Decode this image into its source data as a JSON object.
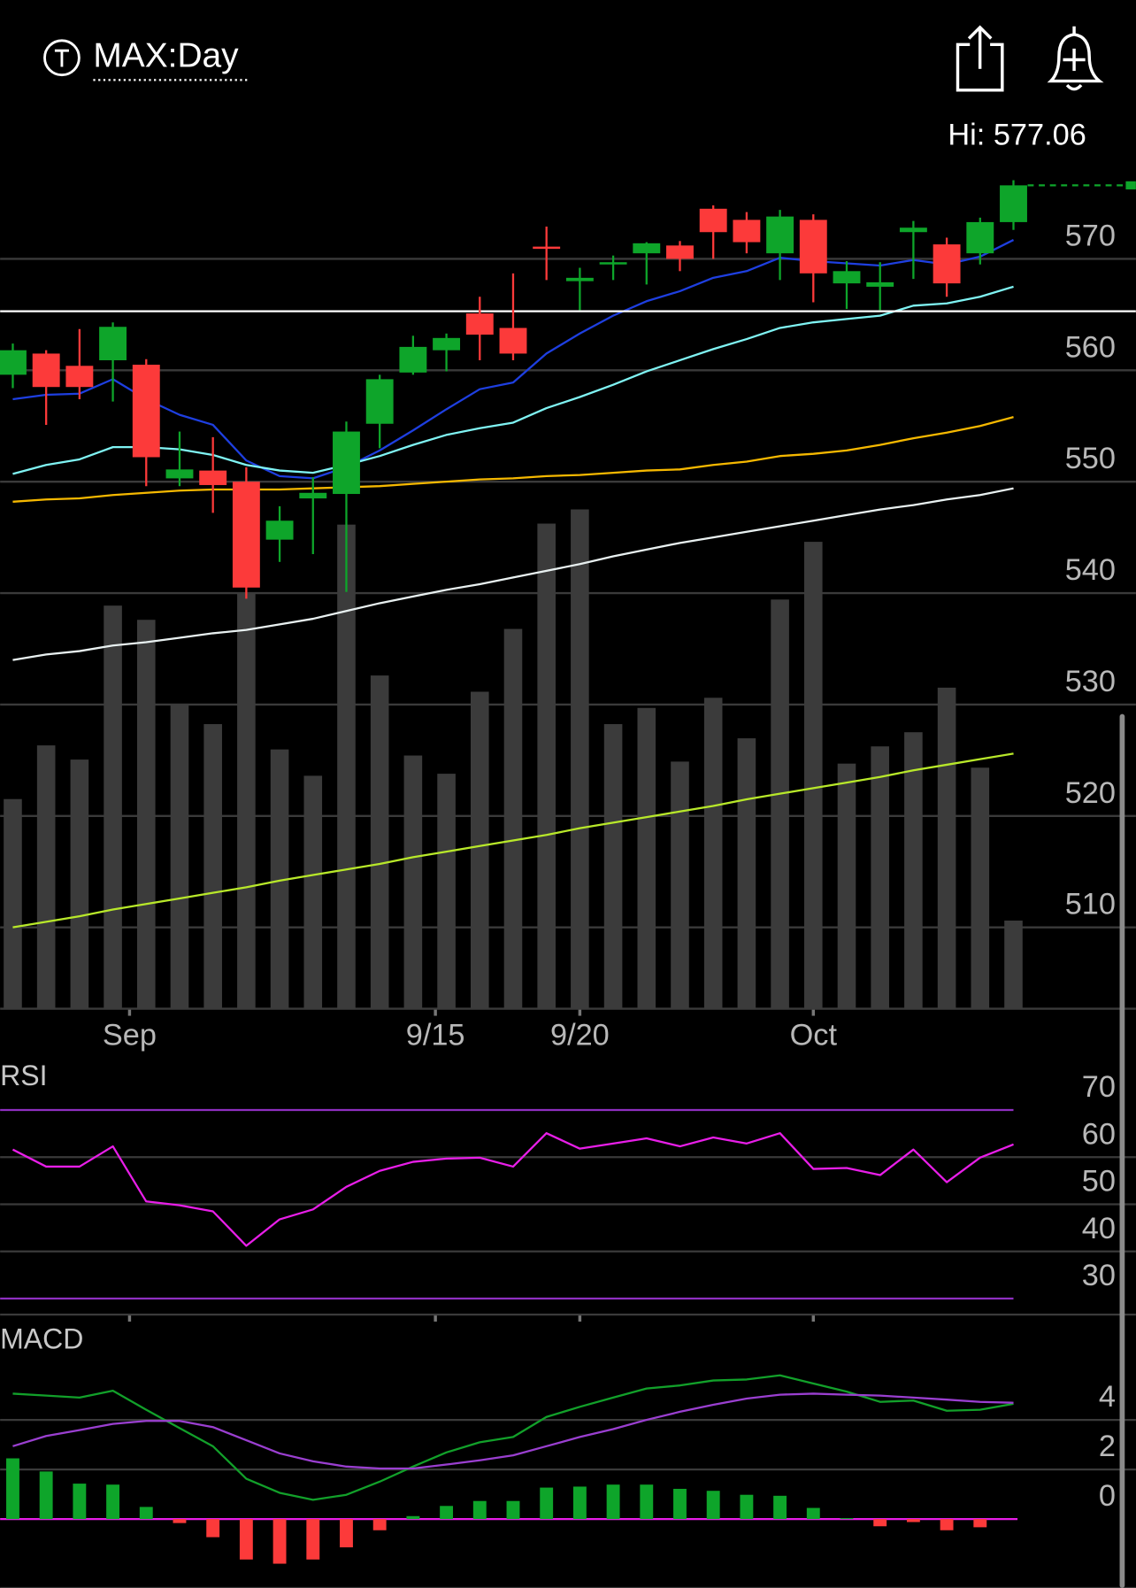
{
  "header": {
    "symbol": "MAX:Day",
    "hi": "Hi: 577.06"
  },
  "chart_data": [
    {
      "type": "candlestick",
      "x": [
        0,
        1,
        2,
        3,
        4,
        5,
        6,
        7,
        8,
        9,
        10,
        11,
        12,
        13,
        14,
        15,
        16,
        17,
        18,
        19,
        20,
        21,
        22,
        23,
        24,
        25,
        26,
        27,
        28,
        29,
        30
      ],
      "xlim": [
        -0.38,
        33.67
      ],
      "xticks": [
        {
          "value": 3.5,
          "label": "Sep"
        },
        {
          "value": 12.67,
          "label": "9/15"
        },
        {
          "value": 17.0,
          "label": "9/20"
        },
        {
          "value": 24.0,
          "label": "Oct"
        }
      ],
      "open": [
        559.6,
        561.5,
        560.4,
        560.9,
        560.5,
        550.3,
        551.0,
        550.0,
        544.8,
        548.5,
        548.9,
        555.2,
        559.8,
        561.8,
        565.1,
        563.8,
        571.1,
        568.0,
        569.5,
        570.5,
        571.2,
        574.5,
        573.5,
        570.5,
        573.5,
        567.8,
        567.5,
        572.4,
        571.3,
        570.5,
        573.3
      ],
      "high": [
        562.4,
        561.8,
        563.7,
        564.3,
        561.0,
        554.5,
        554.0,
        551.3,
        547.8,
        550.4,
        555.4,
        559.6,
        563.1,
        563.3,
        566.6,
        568.7,
        572.9,
        569.2,
        570.3,
        571.5,
        571.6,
        574.8,
        574.2,
        574.4,
        574.0,
        569.8,
        569.7,
        573.4,
        571.9,
        573.7,
        577.06
      ],
      "low": [
        558.4,
        555.1,
        557.4,
        557.2,
        549.6,
        549.6,
        547.2,
        539.5,
        542.8,
        543.5,
        540.1,
        553.0,
        559.6,
        559.9,
        560.9,
        560.9,
        568.1,
        565.4,
        568.1,
        567.7,
        568.9,
        570.0,
        570.5,
        568.1,
        566.1,
        565.5,
        565.4,
        568.2,
        566.6,
        569.5,
        572.6
      ],
      "close": [
        561.8,
        558.5,
        558.5,
        563.9,
        552.2,
        551.1,
        549.7,
        540.5,
        546.5,
        549.0,
        554.5,
        559.2,
        562.1,
        562.9,
        563.2,
        561.5,
        570.9,
        568.3,
        569.7,
        571.4,
        570.0,
        572.4,
        571.5,
        573.8,
        568.7,
        568.9,
        567.9,
        572.8,
        567.8,
        573.3,
        576.6
      ],
      "up_color": "#0ea52a",
      "down_color": "#fc3a3a",
      "volume": [
        207,
        260,
        246,
        398,
        384,
        300,
        281,
        411,
        256,
        230,
        478,
        329,
        250,
        232,
        313,
        375,
        479,
        493,
        281,
        297,
        244,
        307,
        267,
        404,
        461,
        242,
        259,
        273,
        317,
        238,
        87
      ],
      "volume_lim": [
        0,
        846
      ],
      "volume_color": "#3b3b3b",
      "series": [
        {
          "color": "#1e3fe0",
          "values": [
            557.4,
            557.8,
            557.9,
            559.2,
            557.4,
            556.0,
            555.1,
            551.9,
            550.5,
            550.3,
            551.3,
            552.8,
            554.6,
            556.5,
            558.3,
            558.9,
            561.5,
            563.3,
            564.9,
            566.2,
            567.1,
            568.3,
            568.9,
            570.1,
            569.8,
            569.6,
            569.4,
            569.9,
            569.5,
            570.2,
            571.7
          ]
        },
        {
          "color": "#7ff3f3",
          "values": [
            550.7,
            551.5,
            552.0,
            553.1,
            553.1,
            552.9,
            552.4,
            551.5,
            551.0,
            550.8,
            551.5,
            552.3,
            553.3,
            554.2,
            554.8,
            555.3,
            556.6,
            557.6,
            558.7,
            559.9,
            560.9,
            561.9,
            562.8,
            563.8,
            564.3,
            564.6,
            564.9,
            565.8,
            566.0,
            566.6,
            567.5
          ]
        },
        {
          "color": "#f5b800",
          "values": [
            548.2,
            548.4,
            548.5,
            548.8,
            549.0,
            549.2,
            549.3,
            549.3,
            549.3,
            549.4,
            549.5,
            549.6,
            549.8,
            550.0,
            550.2,
            550.3,
            550.5,
            550.6,
            550.8,
            551.0,
            551.1,
            551.5,
            551.8,
            552.3,
            552.5,
            552.8,
            553.3,
            553.9,
            554.4,
            555.0,
            555.8
          ]
        },
        {
          "color": "#e8f0f0",
          "values": [
            534.0,
            534.5,
            534.8,
            535.3,
            535.6,
            536.0,
            536.4,
            536.7,
            537.2,
            537.7,
            538.4,
            539.1,
            539.7,
            540.3,
            540.8,
            541.4,
            542.0,
            542.6,
            543.3,
            543.9,
            544.5,
            545.0,
            545.5,
            546.0,
            546.5,
            547.0,
            547.5,
            547.9,
            548.4,
            548.8,
            549.4
          ]
        },
        {
          "color": "#b8e82a",
          "values": [
            510.0,
            510.5,
            511.0,
            511.6,
            512.1,
            512.6,
            513.1,
            513.6,
            514.2,
            514.7,
            515.2,
            515.7,
            516.3,
            516.8,
            517.3,
            517.8,
            518.3,
            518.9,
            519.4,
            519.9,
            520.4,
            520.9,
            521.5,
            522.0,
            522.5,
            523.0,
            523.5,
            524.1,
            524.6,
            525.1,
            525.6
          ]
        }
      ],
      "hline": 565.3,
      "hline_color": "#ffffff",
      "ylim": [
        502.7,
        579.6
      ],
      "yticks": [
        510,
        520,
        530,
        540,
        550,
        560,
        570
      ],
      "grid": true
    },
    {
      "type": "line",
      "title": "RSI",
      "series": [
        {
          "color": "#e81ee8",
          "values": [
            61.6,
            58.0,
            58.0,
            62.3,
            50.6,
            49.8,
            48.5,
            41.2,
            46.8,
            48.9,
            53.7,
            57.1,
            59.0,
            59.7,
            59.9,
            58.0,
            65.1,
            61.8,
            62.9,
            64.0,
            62.3,
            64.2,
            62.9,
            65.1,
            57.5,
            57.7,
            56.2,
            61.6,
            54.7,
            59.9,
            62.7
          ]
        }
      ],
      "bands": [
        70,
        30
      ],
      "band_color": "#8e2fc0",
      "ylim": [
        26.6,
        79.9
      ],
      "yticks": [
        30,
        40,
        50,
        60,
        70
      ],
      "grid": true
    },
    {
      "type": "macd",
      "title": "MACD",
      "series": [
        {
          "color": "#12a02a",
          "values": [
            5.06,
            4.98,
            4.9,
            5.18,
            4.41,
            3.67,
            2.94,
            1.63,
            1.06,
            0.78,
            0.98,
            1.51,
            2.12,
            2.69,
            3.1,
            3.31,
            4.12,
            4.53,
            4.9,
            5.27,
            5.39,
            5.59,
            5.63,
            5.8,
            5.47,
            5.14,
            4.73,
            4.78,
            4.37,
            4.41,
            4.65
          ]
        },
        {
          "color": "#9a3fd0",
          "values": [
            2.94,
            3.35,
            3.59,
            3.84,
            3.96,
            3.96,
            3.71,
            3.18,
            2.65,
            2.33,
            2.12,
            2.04,
            2.04,
            2.2,
            2.37,
            2.57,
            2.94,
            3.31,
            3.63,
            4.0,
            4.33,
            4.61,
            4.86,
            5.02,
            5.06,
            5.02,
            4.98,
            4.9,
            4.82,
            4.73,
            4.69
          ]
        }
      ],
      "histogram": [
        2.45,
        1.92,
        1.43,
        1.39,
        0.49,
        -0.16,
        -0.73,
        -1.63,
        -1.8,
        -1.63,
        -1.14,
        -0.45,
        0.12,
        0.53,
        0.73,
        0.73,
        1.27,
        1.31,
        1.39,
        1.39,
        1.22,
        1.14,
        0.98,
        0.94,
        0.45,
        0.04,
        -0.29,
        -0.12,
        -0.45,
        -0.33,
        0
      ],
      "up_color": "#0ea52a",
      "down_color": "#fc3a3a",
      "zero_color": "#e81ee8",
      "ylim": [
        -2.78,
        7.76
      ],
      "yticks": [
        0,
        2,
        4
      ],
      "grid": true
    }
  ]
}
